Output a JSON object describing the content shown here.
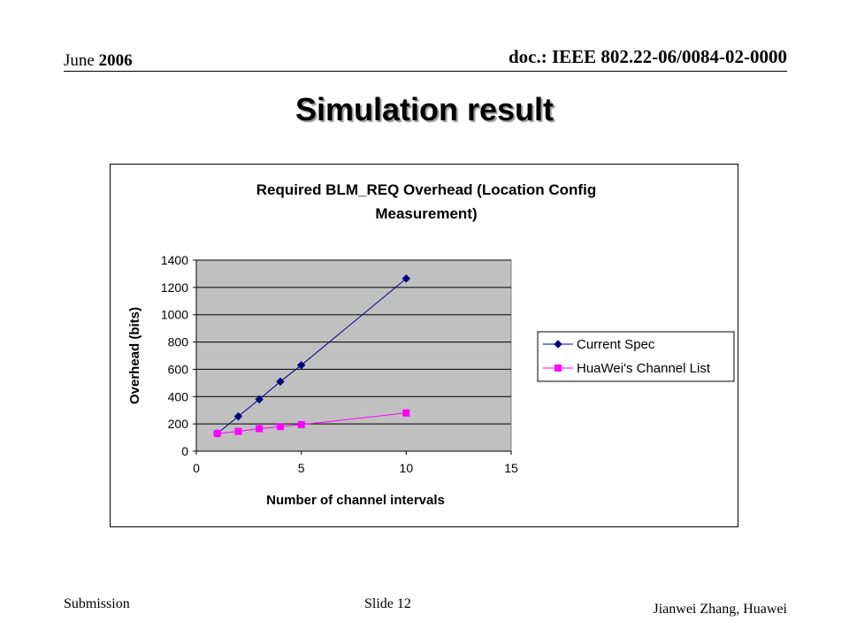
{
  "header": {
    "date_month": "June",
    "date_year": "2006",
    "doc_id": "doc.: IEEE 802.22-06/0084-02-0000"
  },
  "slide_title": "Simulation result",
  "footer": {
    "submission": "Submission",
    "slide": "Slide 12",
    "author": "Jianwei Zhang, Huawei"
  },
  "chart_data": {
    "type": "line",
    "title_line1": "Required BLM_REQ Overhead (Location Config",
    "title_line2": "Measurement)",
    "xlabel": "Number of channel intervals",
    "ylabel": "Overhead (bits)",
    "xlim": [
      0,
      15
    ],
    "ylim": [
      0,
      1400
    ],
    "xticks": [
      0,
      5,
      10,
      15
    ],
    "yticks": [
      0,
      200,
      400,
      600,
      800,
      1000,
      1200,
      1400
    ],
    "grid": true,
    "legend_position": "right",
    "plot_background": "#c0c0c0",
    "series": [
      {
        "name": "Current Spec",
        "color": "#000080",
        "marker": "diamond",
        "x": [
          1,
          2,
          3,
          4,
          5,
          10
        ],
        "y": [
          130,
          255,
          380,
          510,
          630,
          1265
        ]
      },
      {
        "name": "HuaWei's Channel List",
        "color": "#ff00ff",
        "marker": "square",
        "x": [
          1,
          2,
          3,
          4,
          5,
          10
        ],
        "y": [
          130,
          145,
          165,
          180,
          195,
          280
        ]
      }
    ]
  }
}
